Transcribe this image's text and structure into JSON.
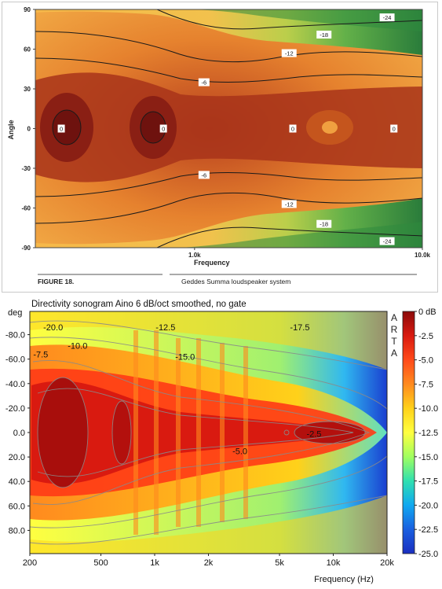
{
  "chart_data": [
    {
      "type": "heatmap",
      "xlabel": "Frequency",
      "ylabel": "Angle",
      "x_scale": "log",
      "xlim": [
        200,
        10000
      ],
      "ylim": [
        -90,
        90
      ],
      "x_ticks": [
        {
          "value": 1000,
          "label": "1.0k"
        },
        {
          "value": 10000,
          "label": "10.0k"
        }
      ],
      "y_ticks": [
        90,
        60,
        30,
        0,
        -30,
        -60,
        -90
      ],
      "contour_labels": [
        {
          "text": "-24",
          "freq": 7000,
          "angle": 84
        },
        {
          "text": "-18",
          "freq": 3700,
          "angle": 71
        },
        {
          "text": "-12",
          "freq": 2600,
          "angle": 57
        },
        {
          "text": "-6",
          "freq": 1100,
          "angle": 35
        },
        {
          "text": "0",
          "freq": 260,
          "angle": 0
        },
        {
          "text": "0",
          "freq": 730,
          "angle": 0
        },
        {
          "text": "0",
          "freq": 2700,
          "angle": 0
        },
        {
          "text": "0",
          "freq": 7500,
          "angle": 0
        },
        {
          "text": "-6",
          "freq": 1100,
          "angle": -35
        },
        {
          "text": "-12",
          "freq": 2600,
          "angle": -57
        },
        {
          "text": "-18",
          "freq": 3700,
          "angle": -72
        },
        {
          "text": "-24",
          "freq": 7000,
          "angle": -85
        }
      ],
      "caption_left": "FIGURE 18.",
      "caption_right": "Geddes Summa loudspeaker system",
      "colors": {
        "peak": "#7a1612",
        "mid": "#f4a030",
        "low": "#1f7a3a"
      }
    },
    {
      "type": "heatmap",
      "title": "Directivity sonogram   Aino   6 dB/oct smoothed, no gate",
      "xlabel": "Frequency (Hz)",
      "ylabel": "deg",
      "x_scale": "log",
      "xlim": [
        200,
        20000
      ],
      "ylim": [
        -90,
        90
      ],
      "x_ticks": [
        {
          "value": 200,
          "label": "200"
        },
        {
          "value": 500,
          "label": "500"
        },
        {
          "value": 1000,
          "label": "1k"
        },
        {
          "value": 2000,
          "label": "2k"
        },
        {
          "value": 5000,
          "label": "5k"
        },
        {
          "value": 10000,
          "label": "10k"
        },
        {
          "value": 20000,
          "label": "20k"
        }
      ],
      "y_ticks": [
        {
          "value": -80,
          "label": "-80.0"
        },
        {
          "value": -60,
          "label": "-60.0"
        },
        {
          "value": -40,
          "label": "-40.0"
        },
        {
          "value": -20,
          "label": "-20.0"
        },
        {
          "value": 0,
          "label": "0.0"
        },
        {
          "value": 20,
          "label": "20.0"
        },
        {
          "value": 40,
          "label": "40.0"
        },
        {
          "value": 60,
          "label": "60.0"
        },
        {
          "value": 80,
          "label": "80.0"
        }
      ],
      "contour_labels": [
        {
          "text": "-20.0",
          "freq": 270,
          "angle": -86
        },
        {
          "text": "-12.5",
          "freq": 1150,
          "angle": -86
        },
        {
          "text": "-17.5",
          "freq": 6500,
          "angle": -86
        },
        {
          "text": "-10.0",
          "freq": 370,
          "angle": -71
        },
        {
          "text": "-7.5",
          "freq": 230,
          "angle": -64
        },
        {
          "text": "-15.0",
          "freq": 1480,
          "angle": -62
        },
        {
          "text": "-2.5",
          "freq": 7800,
          "angle": 1
        },
        {
          "text": "-5.0",
          "freq": 3000,
          "angle": 15
        }
      ],
      "colorbar": {
        "ticks": [
          "0 dB",
          "-2.5",
          "-5.0",
          "-7.5",
          "-10.0",
          "-12.5",
          "-15.0",
          "-17.5",
          "-20.0",
          "-22.5",
          "-25.0"
        ],
        "range": [
          -25,
          0
        ],
        "colors": [
          "#8b0a0a",
          "#d91a10",
          "#ff4a1a",
          "#ff8a1e",
          "#ffd11a",
          "#ffff40",
          "#a0ff60",
          "#30e0b0",
          "#10a8f0",
          "#1a5fe0",
          "#1a2fc0"
        ]
      },
      "brand_letters": [
        "A",
        "R",
        "T",
        "A"
      ]
    }
  ]
}
